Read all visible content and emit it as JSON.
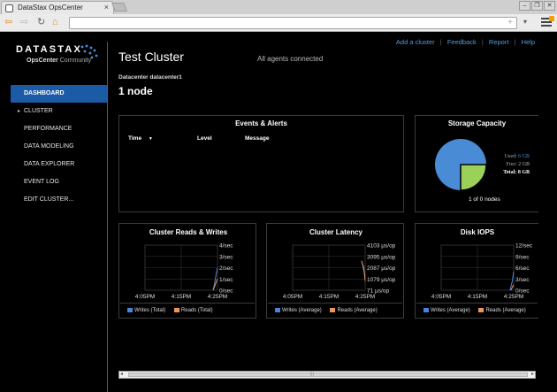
{
  "browser": {
    "tab_title": "DataStax OpsCenter",
    "address": "",
    "close_glyph": "×"
  },
  "logo": {
    "word": "DATASTAX",
    "product": "OpsCenter",
    "edition": "Community"
  },
  "toplinks": [
    "Add a cluster",
    "Feedback",
    "Report",
    "Help"
  ],
  "nav": [
    {
      "label": "DASHBOARD",
      "active": true
    },
    {
      "label": "CLUSTER",
      "caret": true
    },
    {
      "label": "PERFORMANCE"
    },
    {
      "label": "DATA MODELING"
    },
    {
      "label": "DATA EXPLORER"
    },
    {
      "label": "EVENT LOG"
    },
    {
      "label": "EDIT CLUSTER..."
    }
  ],
  "header": {
    "title": "Test Cluster",
    "agents": "All agents connected",
    "datacenter": "Datacenter datacenter1",
    "nodes": "1 node"
  },
  "events": {
    "title": "Events & Alerts",
    "columns": [
      "Time",
      "Level",
      "Message"
    ],
    "sort_indicator": "▼"
  },
  "storage": {
    "title": "Storage Capacity",
    "used_label": "Used:",
    "used": "6 GB",
    "free_label": "Free:",
    "free": "2 GB",
    "total_label": "Total:",
    "total": "8 GB",
    "nodes_count": "1 of 0 nodes",
    "colors": {
      "used": "#4a8bd6",
      "free": "#9bd15b"
    }
  },
  "chart_data": [
    {
      "type": "line",
      "title": "Cluster Reads & Writes",
      "x_ticks": [
        "4:05PM",
        "4:15PM",
        "4:25PM"
      ],
      "y_ticks": [
        "4/sec",
        "3/sec",
        "2/sec",
        "1/sec",
        "0/sec"
      ],
      "ylim": [
        0,
        4
      ],
      "legend": [
        "Writes (Total)",
        "Reads (Total)"
      ],
      "series": [
        {
          "name": "Writes (Total)",
          "color": "#4a84d8",
          "x": [
            0.94,
            0.96,
            0.98,
            1.0
          ],
          "y": [
            0,
            0.6,
            1.4,
            2.0
          ]
        },
        {
          "name": "Reads (Total)",
          "color": "#f0955a",
          "x": [
            0.94,
            0.97,
            1.0
          ],
          "y": [
            0,
            0.5,
            1.0
          ]
        }
      ]
    },
    {
      "type": "line",
      "title": "Cluster Latency",
      "x_ticks": [
        "4:05PM",
        "4:15PM",
        "4:25PM"
      ],
      "y_ticks": [
        "4103 µs/op",
        "3095 µs/op",
        "2087 µs/op",
        "1079 µs/op",
        "71 µs/op"
      ],
      "ylim": [
        71,
        4103
      ],
      "legend": [
        "Writes (Average)",
        "Reads (Average)"
      ],
      "series": [
        {
          "name": "Writes (Average)",
          "color": "#4a84d8",
          "x": [
            0.96,
            0.98,
            1.0
          ],
          "y": [
            2500,
            1900,
            1300
          ]
        },
        {
          "name": "Reads (Average)",
          "color": "#f0955a",
          "x": [
            0.95,
            0.98,
            1.0
          ],
          "y": [
            2700,
            2100,
            900
          ]
        }
      ]
    },
    {
      "type": "line",
      "title": "Disk IOPS",
      "x_ticks": [
        "4:05PM",
        "4:15PM",
        "4:25PM"
      ],
      "y_ticks": [
        "12/sec",
        "9/sec",
        "6/sec",
        "3/sec",
        "0/sec"
      ],
      "ylim": [
        0,
        12
      ],
      "legend": [
        "Writes (Average)",
        "Reads (Average)"
      ],
      "series": [
        {
          "name": "Writes (Average)",
          "color": "#4a84d8",
          "x": [
            0.95,
            0.98,
            1.0
          ],
          "y": [
            0,
            2.4,
            5
          ]
        },
        {
          "name": "Reads (Average)",
          "color": "#f0955a",
          "x": [
            0.96,
            1.0
          ],
          "y": [
            0,
            1.5
          ]
        }
      ]
    }
  ]
}
